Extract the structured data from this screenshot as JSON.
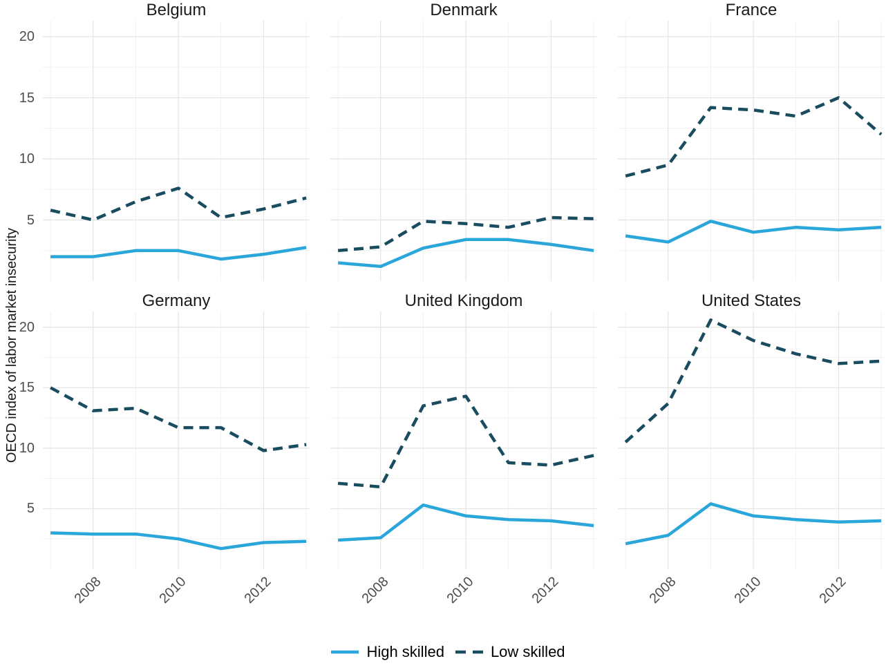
{
  "y_axis_title": "OECD index of labor market insecurity",
  "legend": {
    "items": [
      {
        "label": "High skilled",
        "color": "#2aa6da",
        "dash": "solid"
      },
      {
        "label": "Low skilled",
        "color": "#1a4c60",
        "dash": "dashed"
      }
    ]
  },
  "chart_data": {
    "type": "line",
    "x": [
      2007,
      2008,
      2009,
      2010,
      2011,
      2012,
      2013
    ],
    "x_major_breaks": [
      2008,
      2010,
      2012
    ],
    "x_tick_labels": [
      "2008",
      "2010",
      "2012"
    ],
    "x_minor_breaks": [
      2007,
      2009,
      2011,
      2013
    ],
    "y_major_breaks": [
      5,
      10,
      15,
      20
    ],
    "y_tick_labels": [
      "5",
      "10",
      "15",
      "20"
    ],
    "y_minor_breaks": [
      2.5,
      7.5,
      12.5,
      17.5
    ],
    "xlim": [
      2006.82,
      2013.08
    ],
    "ylim": [
      0,
      21.3
    ],
    "xlabel": "",
    "ylabel": "OECD index of labor market insecurity",
    "grid": true,
    "legend_position": "bottom",
    "facets": [
      {
        "label": "Belgium",
        "series": [
          {
            "name": "High skilled",
            "values": [
              2.0,
              2.0,
              2.5,
              2.5,
              1.8,
              2.2,
              2.75
            ]
          },
          {
            "name": "Low skilled",
            "values": [
              5.8,
              5.0,
              6.5,
              7.6,
              5.2,
              5.9,
              6.8
            ]
          }
        ]
      },
      {
        "label": "Denmark",
        "series": [
          {
            "name": "High skilled",
            "values": [
              1.5,
              1.2,
              2.7,
              3.4,
              3.4,
              3.0,
              2.5
            ]
          },
          {
            "name": "Low skilled",
            "values": [
              2.5,
              2.8,
              4.9,
              4.7,
              4.4,
              5.2,
              5.1
            ]
          }
        ]
      },
      {
        "label": "France",
        "series": [
          {
            "name": "High skilled",
            "values": [
              3.7,
              3.2,
              4.9,
              4.0,
              4.4,
              4.2,
              4.4
            ]
          },
          {
            "name": "Low skilled",
            "values": [
              8.6,
              9.5,
              14.2,
              14.0,
              13.5,
              15.0,
              12.0
            ]
          }
        ]
      },
      {
        "label": "Germany",
        "series": [
          {
            "name": "High skilled",
            "values": [
              3.0,
              2.9,
              2.9,
              2.5,
              1.7,
              2.2,
              2.3
            ]
          },
          {
            "name": "Low skilled",
            "values": [
              15.0,
              13.1,
              13.3,
              11.7,
              11.7,
              9.8,
              10.3
            ]
          }
        ]
      },
      {
        "label": "United Kingdom",
        "series": [
          {
            "name": "High skilled",
            "values": [
              2.4,
              2.6,
              5.3,
              4.4,
              4.1,
              4.0,
              3.6
            ]
          },
          {
            "name": "Low skilled",
            "values": [
              7.1,
              6.8,
              13.5,
              14.3,
              8.8,
              8.6,
              9.4
            ]
          }
        ]
      },
      {
        "label": "United States",
        "series": [
          {
            "name": "High skilled",
            "values": [
              2.1,
              2.8,
              5.4,
              4.4,
              4.1,
              3.9,
              4.0
            ]
          },
          {
            "name": "Low skilled",
            "values": [
              10.5,
              13.7,
              20.6,
              18.9,
              17.8,
              17.0,
              17.2
            ]
          }
        ]
      }
    ]
  },
  "style": {
    "grid_major_color": "#e3e3e3",
    "grid_minor_color": "#f1f1f1",
    "tick_label_color": "#4d4d4d",
    "line_width": 4.5
  }
}
